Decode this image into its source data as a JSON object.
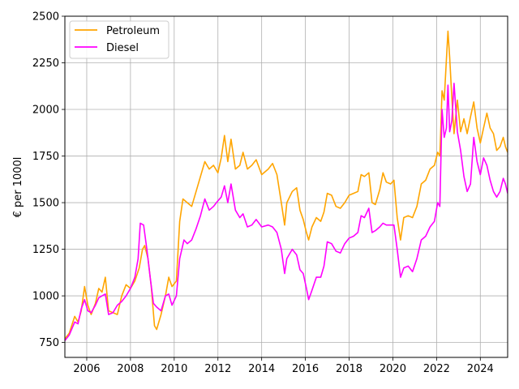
{
  "chart_data": {
    "type": "line",
    "title": "",
    "xlabel": "",
    "ylabel": "€ per 1000l",
    "xlim": [
      2005.0,
      2025.25
    ],
    "ylim": [
      670,
      2500
    ],
    "xticks": [
      2006,
      2008,
      2010,
      2012,
      2014,
      2016,
      2018,
      2020,
      2022,
      2024
    ],
    "xtick_labels": [
      "2006",
      "2008",
      "2010",
      "2012",
      "2014",
      "2016",
      "2018",
      "2020",
      "2022",
      "2024"
    ],
    "yticks": [
      750,
      1000,
      1250,
      1500,
      1750,
      2000,
      2250,
      2500
    ],
    "ytick_labels": [
      "750",
      "1000",
      "1250",
      "1500",
      "1750",
      "2000",
      "2250",
      "2500"
    ],
    "grid": true,
    "legend_position": "top-left",
    "series": [
      {
        "name": "Petroleum",
        "color": "#ffa500",
        "points": [
          [
            2005.0,
            770
          ],
          [
            2005.2,
            800
          ],
          [
            2005.45,
            890
          ],
          [
            2005.6,
            860
          ],
          [
            2005.75,
            920
          ],
          [
            2005.9,
            1050
          ],
          [
            2006.05,
            950
          ],
          [
            2006.2,
            900
          ],
          [
            2006.4,
            960
          ],
          [
            2006.55,
            1040
          ],
          [
            2006.7,
            1020
          ],
          [
            2006.85,
            1100
          ],
          [
            2007.0,
            920
          ],
          [
            2007.2,
            910
          ],
          [
            2007.4,
            900
          ],
          [
            2007.6,
            1000
          ],
          [
            2007.8,
            1060
          ],
          [
            2008.0,
            1040
          ],
          [
            2008.2,
            1080
          ],
          [
            2008.4,
            1150
          ],
          [
            2008.55,
            1250
          ],
          [
            2008.65,
            1270
          ],
          [
            2008.8,
            1200
          ],
          [
            2008.95,
            1050
          ],
          [
            2009.1,
            840
          ],
          [
            2009.2,
            820
          ],
          [
            2009.4,
            900
          ],
          [
            2009.6,
            1000
          ],
          [
            2009.75,
            1100
          ],
          [
            2009.9,
            1050
          ],
          [
            2010.1,
            1080
          ],
          [
            2010.25,
            1400
          ],
          [
            2010.4,
            1520
          ],
          [
            2010.6,
            1500
          ],
          [
            2010.8,
            1480
          ],
          [
            2011.0,
            1560
          ],
          [
            2011.2,
            1640
          ],
          [
            2011.4,
            1720
          ],
          [
            2011.6,
            1680
          ],
          [
            2011.8,
            1700
          ],
          [
            2012.0,
            1660
          ],
          [
            2012.15,
            1740
          ],
          [
            2012.3,
            1860
          ],
          [
            2012.45,
            1720
          ],
          [
            2012.6,
            1840
          ],
          [
            2012.8,
            1680
          ],
          [
            2013.0,
            1700
          ],
          [
            2013.15,
            1770
          ],
          [
            2013.35,
            1680
          ],
          [
            2013.55,
            1700
          ],
          [
            2013.75,
            1730
          ],
          [
            2014.0,
            1650
          ],
          [
            2014.3,
            1680
          ],
          [
            2014.5,
            1710
          ],
          [
            2014.7,
            1650
          ],
          [
            2014.9,
            1500
          ],
          [
            2015.05,
            1380
          ],
          [
            2015.15,
            1500
          ],
          [
            2015.4,
            1560
          ],
          [
            2015.6,
            1580
          ],
          [
            2015.75,
            1460
          ],
          [
            2015.9,
            1410
          ],
          [
            2016.05,
            1340
          ],
          [
            2016.15,
            1300
          ],
          [
            2016.3,
            1370
          ],
          [
            2016.5,
            1420
          ],
          [
            2016.7,
            1400
          ],
          [
            2016.85,
            1450
          ],
          [
            2017.0,
            1550
          ],
          [
            2017.2,
            1540
          ],
          [
            2017.4,
            1480
          ],
          [
            2017.6,
            1470
          ],
          [
            2017.8,
            1500
          ],
          [
            2018.0,
            1540
          ],
          [
            2018.2,
            1550
          ],
          [
            2018.4,
            1560
          ],
          [
            2018.55,
            1650
          ],
          [
            2018.7,
            1640
          ],
          [
            2018.9,
            1660
          ],
          [
            2019.05,
            1500
          ],
          [
            2019.2,
            1490
          ],
          [
            2019.4,
            1570
          ],
          [
            2019.55,
            1660
          ],
          [
            2019.7,
            1610
          ],
          [
            2019.9,
            1600
          ],
          [
            2020.05,
            1620
          ],
          [
            2020.2,
            1420
          ],
          [
            2020.35,
            1300
          ],
          [
            2020.5,
            1420
          ],
          [
            2020.7,
            1430
          ],
          [
            2020.9,
            1420
          ],
          [
            2021.1,
            1480
          ],
          [
            2021.3,
            1600
          ],
          [
            2021.5,
            1620
          ],
          [
            2021.7,
            1680
          ],
          [
            2021.9,
            1700
          ],
          [
            2022.05,
            1770
          ],
          [
            2022.15,
            1750
          ],
          [
            2022.25,
            2100
          ],
          [
            2022.35,
            2050
          ],
          [
            2022.45,
            2270
          ],
          [
            2022.52,
            2420
          ],
          [
            2022.6,
            2280
          ],
          [
            2022.7,
            2060
          ],
          [
            2022.8,
            1870
          ],
          [
            2022.95,
            2050
          ],
          [
            2023.1,
            1880
          ],
          [
            2023.25,
            1950
          ],
          [
            2023.4,
            1870
          ],
          [
            2023.55,
            1960
          ],
          [
            2023.7,
            2040
          ],
          [
            2023.85,
            1900
          ],
          [
            2024.0,
            1820
          ],
          [
            2024.15,
            1900
          ],
          [
            2024.3,
            1980
          ],
          [
            2024.45,
            1900
          ],
          [
            2024.6,
            1870
          ],
          [
            2024.75,
            1780
          ],
          [
            2024.9,
            1800
          ],
          [
            2025.05,
            1850
          ],
          [
            2025.15,
            1800
          ],
          [
            2025.25,
            1770
          ]
        ]
      },
      {
        "name": "Diesel",
        "color": "#ff00ff",
        "points": [
          [
            2005.0,
            760
          ],
          [
            2005.2,
            790
          ],
          [
            2005.45,
            860
          ],
          [
            2005.6,
            850
          ],
          [
            2005.75,
            930
          ],
          [
            2005.9,
            980
          ],
          [
            2006.05,
            920
          ],
          [
            2006.2,
            910
          ],
          [
            2006.4,
            950
          ],
          [
            2006.55,
            990
          ],
          [
            2006.7,
            1000
          ],
          [
            2006.85,
            1010
          ],
          [
            2007.0,
            900
          ],
          [
            2007.2,
            910
          ],
          [
            2007.4,
            950
          ],
          [
            2007.6,
            970
          ],
          [
            2007.8,
            1000
          ],
          [
            2008.0,
            1040
          ],
          [
            2008.2,
            1100
          ],
          [
            2008.35,
            1200
          ],
          [
            2008.45,
            1390
          ],
          [
            2008.6,
            1380
          ],
          [
            2008.75,
            1250
          ],
          [
            2008.9,
            1100
          ],
          [
            2009.05,
            960
          ],
          [
            2009.2,
            940
          ],
          [
            2009.4,
            920
          ],
          [
            2009.6,
            1000
          ],
          [
            2009.75,
            1010
          ],
          [
            2009.9,
            950
          ],
          [
            2010.1,
            1000
          ],
          [
            2010.25,
            1200
          ],
          [
            2010.45,
            1300
          ],
          [
            2010.6,
            1280
          ],
          [
            2010.8,
            1300
          ],
          [
            2011.0,
            1360
          ],
          [
            2011.2,
            1430
          ],
          [
            2011.4,
            1520
          ],
          [
            2011.6,
            1460
          ],
          [
            2011.8,
            1480
          ],
          [
            2012.0,
            1510
          ],
          [
            2012.15,
            1530
          ],
          [
            2012.3,
            1590
          ],
          [
            2012.45,
            1500
          ],
          [
            2012.6,
            1600
          ],
          [
            2012.8,
            1460
          ],
          [
            2013.0,
            1420
          ],
          [
            2013.15,
            1440
          ],
          [
            2013.35,
            1370
          ],
          [
            2013.55,
            1380
          ],
          [
            2013.75,
            1410
          ],
          [
            2014.0,
            1370
          ],
          [
            2014.3,
            1380
          ],
          [
            2014.5,
            1370
          ],
          [
            2014.7,
            1340
          ],
          [
            2014.9,
            1250
          ],
          [
            2015.05,
            1120
          ],
          [
            2015.15,
            1200
          ],
          [
            2015.4,
            1250
          ],
          [
            2015.6,
            1220
          ],
          [
            2015.75,
            1140
          ],
          [
            2015.9,
            1120
          ],
          [
            2016.05,
            1040
          ],
          [
            2016.15,
            980
          ],
          [
            2016.3,
            1030
          ],
          [
            2016.5,
            1100
          ],
          [
            2016.7,
            1100
          ],
          [
            2016.85,
            1160
          ],
          [
            2017.0,
            1290
          ],
          [
            2017.2,
            1280
          ],
          [
            2017.4,
            1240
          ],
          [
            2017.6,
            1230
          ],
          [
            2017.8,
            1280
          ],
          [
            2018.0,
            1310
          ],
          [
            2018.2,
            1320
          ],
          [
            2018.4,
            1340
          ],
          [
            2018.55,
            1430
          ],
          [
            2018.7,
            1420
          ],
          [
            2018.9,
            1470
          ],
          [
            2019.05,
            1340
          ],
          [
            2019.2,
            1350
          ],
          [
            2019.4,
            1370
          ],
          [
            2019.55,
            1390
          ],
          [
            2019.7,
            1380
          ],
          [
            2019.9,
            1380
          ],
          [
            2020.05,
            1380
          ],
          [
            2020.2,
            1250
          ],
          [
            2020.35,
            1100
          ],
          [
            2020.5,
            1150
          ],
          [
            2020.7,
            1160
          ],
          [
            2020.9,
            1130
          ],
          [
            2021.1,
            1200
          ],
          [
            2021.3,
            1300
          ],
          [
            2021.5,
            1320
          ],
          [
            2021.7,
            1370
          ],
          [
            2021.9,
            1400
          ],
          [
            2022.05,
            1500
          ],
          [
            2022.15,
            1480
          ],
          [
            2022.25,
            2000
          ],
          [
            2022.35,
            1850
          ],
          [
            2022.45,
            1900
          ],
          [
            2022.52,
            2130
          ],
          [
            2022.6,
            1880
          ],
          [
            2022.7,
            1940
          ],
          [
            2022.8,
            2140
          ],
          [
            2022.95,
            1880
          ],
          [
            2023.1,
            1780
          ],
          [
            2023.25,
            1640
          ],
          [
            2023.4,
            1560
          ],
          [
            2023.55,
            1600
          ],
          [
            2023.7,
            1850
          ],
          [
            2023.85,
            1720
          ],
          [
            2024.0,
            1650
          ],
          [
            2024.15,
            1740
          ],
          [
            2024.3,
            1700
          ],
          [
            2024.45,
            1620
          ],
          [
            2024.6,
            1560
          ],
          [
            2024.75,
            1530
          ],
          [
            2024.9,
            1560
          ],
          [
            2025.05,
            1630
          ],
          [
            2025.15,
            1600
          ],
          [
            2025.25,
            1550
          ]
        ]
      }
    ]
  }
}
